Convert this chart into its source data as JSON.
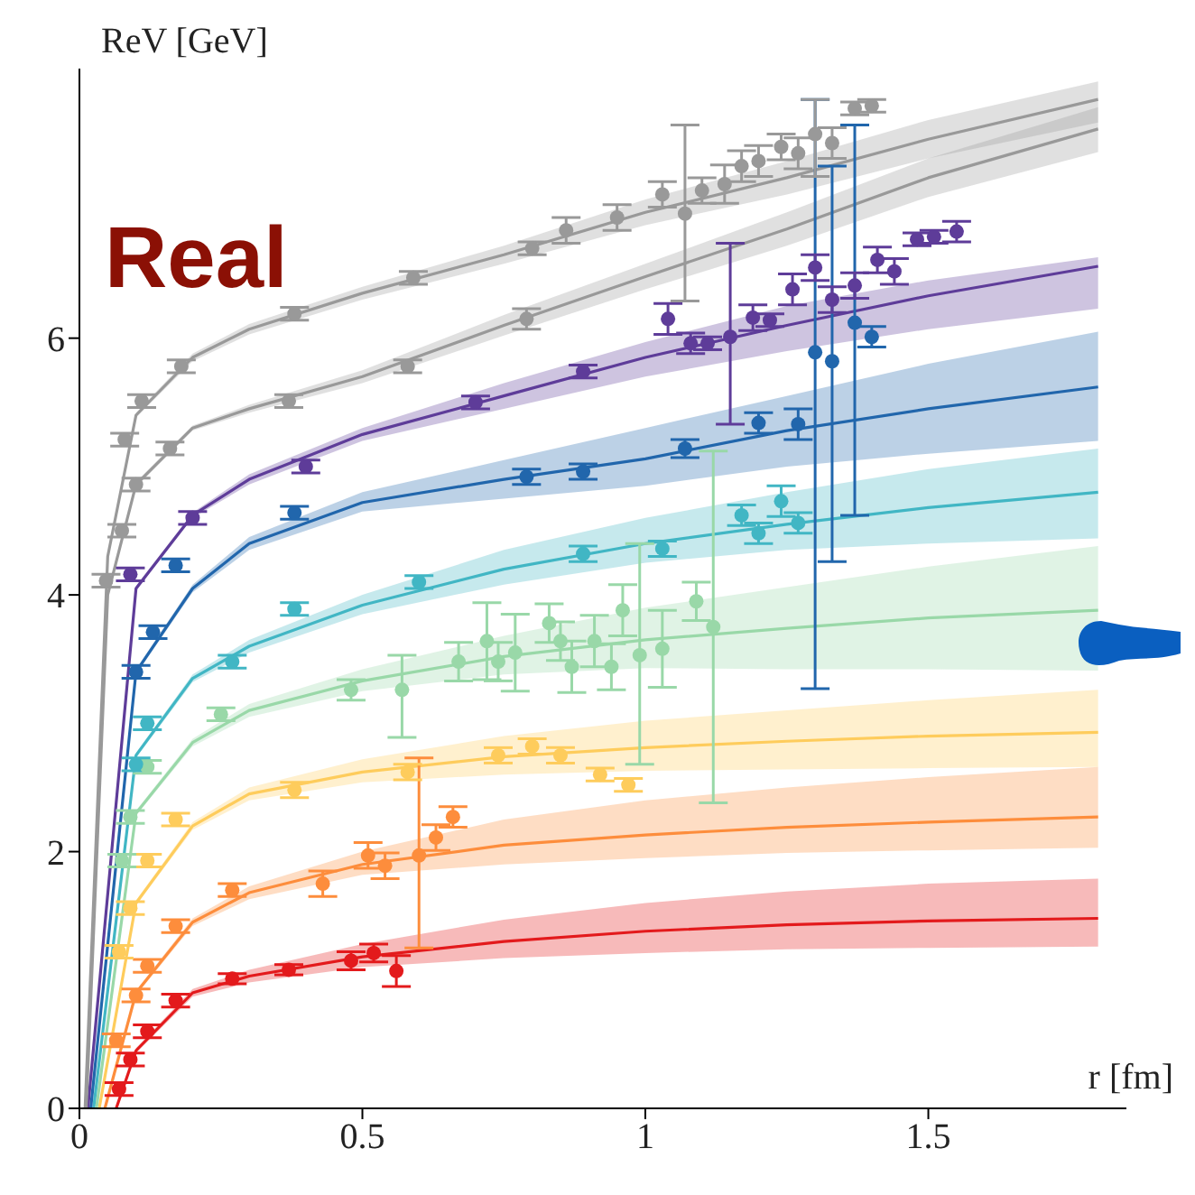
{
  "chart_data": {
    "type": "line",
    "xlabel": "r [fm]",
    "ylabel": "ReV [GeV]",
    "annotations": [
      "Real"
    ],
    "xlim": [
      0,
      1.85
    ],
    "ylim": [
      0,
      8.1
    ],
    "xticks": [
      0,
      0.5,
      1,
      1.5
    ],
    "yticks": [
      0,
      2,
      4,
      6
    ],
    "series": [
      {
        "color": "#e31a1c",
        "x": [
          0.065,
          0.1,
          0.2,
          0.3,
          0.5,
          0.75,
          1,
          1.25,
          1.5,
          1.8
        ],
        "values": [
          0,
          0.45,
          0.9,
          1.03,
          1.18,
          1.3,
          1.38,
          1.43,
          1.46,
          1.48
        ],
        "lower": [
          0,
          0.43,
          0.87,
          0.98,
          1.1,
          1.17,
          1.21,
          1.24,
          1.25,
          1.26
        ],
        "upper": [
          0,
          0.47,
          0.93,
          1.08,
          1.28,
          1.47,
          1.6,
          1.69,
          1.75,
          1.79
        ]
      },
      {
        "color": "#fd8d3c",
        "x": [
          0.045,
          0.1,
          0.2,
          0.3,
          0.5,
          0.75,
          1,
          1.25,
          1.5,
          1.8
        ],
        "values": [
          0,
          0.9,
          1.45,
          1.68,
          1.9,
          2.05,
          2.13,
          2.19,
          2.23,
          2.27
        ],
        "lower": [
          0,
          0.88,
          1.42,
          1.63,
          1.82,
          1.9,
          1.95,
          1.99,
          2.01,
          2.03
        ],
        "upper": [
          0,
          0.92,
          1.48,
          1.73,
          2,
          2.25,
          2.4,
          2.5,
          2.58,
          2.66
        ]
      },
      {
        "color": "#fecc5c",
        "x": [
          0.035,
          0.1,
          0.2,
          0.3,
          0.5,
          0.75,
          1,
          1.25,
          1.5,
          1.8
        ],
        "values": [
          0,
          1.6,
          2.2,
          2.45,
          2.62,
          2.74,
          2.81,
          2.86,
          2.9,
          2.93
        ],
        "lower": [
          0,
          1.58,
          2.17,
          2.4,
          2.54,
          2.6,
          2.63,
          2.64,
          2.65,
          2.66
        ],
        "upper": [
          0,
          1.62,
          2.23,
          2.5,
          2.72,
          2.9,
          3.02,
          3.1,
          3.18,
          3.26
        ]
      },
      {
        "color": "#99d8a8",
        "x": [
          0.03,
          0.1,
          0.2,
          0.3,
          0.5,
          0.75,
          1,
          1.25,
          1.5,
          1.8
        ],
        "values": [
          0,
          2.3,
          2.85,
          3.1,
          3.33,
          3.52,
          3.65,
          3.74,
          3.82,
          3.88
        ],
        "lower": [
          0,
          2.28,
          2.82,
          3.05,
          3.25,
          3.38,
          3.43,
          3.42,
          3.42,
          3.41
        ],
        "upper": [
          0,
          2.32,
          2.88,
          3.15,
          3.42,
          3.68,
          3.9,
          4.06,
          4.22,
          4.38
        ]
      },
      {
        "color": "#41b6c4",
        "x": [
          0.025,
          0.1,
          0.2,
          0.3,
          0.5,
          0.75,
          1,
          1.25,
          1.5,
          1.8
        ],
        "values": [
          0,
          2.75,
          3.35,
          3.6,
          3.92,
          4.2,
          4.4,
          4.55,
          4.68,
          4.8
        ],
        "lower": [
          0,
          2.73,
          3.32,
          3.55,
          3.85,
          4.08,
          4.25,
          4.35,
          4.4,
          4.44
        ],
        "upper": [
          0,
          2.77,
          3.38,
          3.65,
          4,
          4.35,
          4.6,
          4.8,
          4.98,
          5.14
        ]
      },
      {
        "color": "#2166ac",
        "x": [
          0.02,
          0.1,
          0.2,
          0.3,
          0.5,
          0.75,
          1,
          1.25,
          1.5,
          1.8
        ],
        "values": [
          0,
          3.4,
          4.05,
          4.4,
          4.72,
          4.9,
          5.06,
          5.28,
          5.45,
          5.62
        ],
        "lower": [
          0,
          3.38,
          4.02,
          4.35,
          4.65,
          4.75,
          4.85,
          5,
          5.1,
          5.2
        ],
        "upper": [
          0,
          3.42,
          4.08,
          4.45,
          4.8,
          5.05,
          5.3,
          5.55,
          5.8,
          6.05
        ]
      },
      {
        "color": "#5e3c99",
        "x": [
          0.015,
          0.1,
          0.2,
          0.3,
          0.5,
          0.75,
          1,
          1.25,
          1.5,
          1.8
        ],
        "values": [
          0,
          4.05,
          4.62,
          4.9,
          5.25,
          5.55,
          5.85,
          6.1,
          6.33,
          6.56
        ],
        "lower": [
          0,
          4.03,
          4.6,
          4.86,
          5.2,
          5.45,
          5.7,
          5.9,
          6.07,
          6.23
        ],
        "upper": [
          0,
          4.07,
          4.64,
          4.94,
          5.3,
          5.65,
          5.97,
          6.25,
          6.45,
          6.63
        ]
      },
      {
        "color": "#999999",
        "x": [
          0.012,
          0.05,
          0.1,
          0.2,
          0.3,
          0.5,
          0.75,
          1,
          1.25,
          1.5,
          1.8
        ],
        "values": [
          0,
          4,
          4.86,
          5.3,
          5.45,
          5.7,
          6.1,
          6.48,
          6.85,
          7.25,
          7.63
        ],
        "lower": [
          0,
          4,
          4.84,
          5.28,
          5.42,
          5.65,
          6.02,
          6.38,
          6.72,
          7.1,
          7.45
        ],
        "upper": [
          0,
          4,
          4.88,
          5.32,
          5.48,
          5.75,
          6.18,
          6.58,
          6.98,
          7.4,
          7.8
        ]
      },
      {
        "color": "#999999",
        "x": [
          0.01,
          0.05,
          0.1,
          0.2,
          0.3,
          0.5,
          0.75,
          1,
          1.25,
          1.5,
          1.8
        ],
        "values": [
          0,
          4.3,
          5.4,
          5.85,
          6.07,
          6.35,
          6.65,
          6.98,
          7.25,
          7.55,
          7.86
        ],
        "lower": [
          0,
          4.3,
          5.38,
          5.82,
          6.03,
          6.3,
          6.58,
          6.88,
          7.12,
          7.4,
          7.68
        ],
        "upper": [
          0,
          4.3,
          5.42,
          5.88,
          6.11,
          6.4,
          6.72,
          7.08,
          7.38,
          7.7,
          8
        ]
      },
      {
        "type": "scatter",
        "color": "#e31a1c",
        "x": [
          0.07,
          0.09,
          0.12,
          0.17,
          0.27,
          0.37,
          0.48,
          0.52,
          0.56
        ],
        "values": [
          0.15,
          0.38,
          0.6,
          0.84,
          1.01,
          1.08,
          1.15,
          1.21,
          1.07
        ],
        "errors": [
          0.05,
          0.05,
          0.05,
          0.05,
          0.04,
          0.04,
          0.07,
          0.07,
          0.12
        ]
      },
      {
        "type": "scatter",
        "color": "#fd8d3c",
        "x": [
          0.065,
          0.1,
          0.12,
          0.17,
          0.27,
          0.43,
          0.51,
          0.54,
          0.6,
          0.63,
          0.66
        ],
        "values": [
          0.53,
          0.88,
          1.11,
          1.42,
          1.7,
          1.75,
          1.97,
          1.89,
          1.97,
          2.11,
          2.27
        ],
        "errors": [
          0.05,
          0.05,
          0.05,
          0.05,
          0.05,
          0.1,
          0.1,
          0.1,
          [
            1.25,
            2.73
          ],
          0.1,
          0.08
        ]
      },
      {
        "type": "scatter",
        "color": "#fecc5c",
        "x": [
          0.07,
          0.09,
          0.12,
          0.17,
          0.38,
          0.58,
          0.74,
          0.8,
          0.85,
          0.92,
          0.97
        ],
        "values": [
          1.22,
          1.56,
          1.93,
          2.25,
          2.48,
          2.62,
          2.75,
          2.82,
          2.75,
          2.6,
          2.52
        ],
        "errors": [
          0.05,
          0.05,
          0.05,
          0.05,
          0.06,
          0.06,
          0.06,
          0.06,
          0.06,
          0.05,
          0.05
        ]
      },
      {
        "type": "scatter",
        "color": "#99d8a8",
        "x": [
          0.075,
          0.09,
          0.12,
          0.25,
          0.48,
          0.57,
          0.67,
          0.72,
          0.74,
          0.77,
          0.83,
          0.85,
          0.87,
          0.91,
          0.94,
          0.96,
          0.99,
          1.03,
          1.09,
          1.12
        ],
        "values": [
          1.93,
          2.27,
          2.66,
          3.07,
          3.26,
          3.26,
          3.48,
          3.64,
          3.48,
          3.55,
          3.78,
          3.64,
          3.44,
          3.64,
          3.44,
          3.88,
          3.53,
          3.58,
          3.95,
          3.75
        ],
        "errors": [
          0.05,
          0.05,
          0.05,
          0.05,
          0.08,
          [
            2.89,
            3.53
          ],
          0.15,
          0.3,
          0.15,
          0.3,
          0.15,
          0.15,
          0.2,
          0.2,
          0.18,
          0.2,
          [
            2.68,
            4.4
          ],
          0.3,
          0.15,
          [
            2.38,
            5.12
          ]
        ]
      },
      {
        "type": "scatter",
        "color": "#41b6c4",
        "x": [
          0.1,
          0.12,
          0.27,
          0.38,
          0.6,
          0.89,
          1.03,
          1.17,
          1.2,
          1.24,
          1.27
        ],
        "values": [
          2.68,
          3,
          3.48,
          3.89,
          4.1,
          4.32,
          4.36,
          4.62,
          4.48,
          4.73,
          4.56
        ],
        "errors": [
          0.05,
          0.05,
          0.05,
          0.05,
          0.05,
          0.06,
          0.06,
          0.08,
          0.08,
          0.12,
          0.08
        ]
      },
      {
        "type": "scatter",
        "color": "#2166ac",
        "x": [
          0.1,
          0.13,
          0.17,
          0.38,
          0.79,
          0.89,
          1.07,
          1.2,
          1.27,
          1.3,
          1.33,
          1.37,
          1.4
        ],
        "values": [
          3.4,
          3.71,
          4.23,
          4.64,
          4.92,
          4.96,
          5.14,
          5.34,
          5.33,
          5.89,
          5.82,
          6.12,
          6.01
        ],
        "errors": [
          0.05,
          0.05,
          0.05,
          0.05,
          0.06,
          0.06,
          0.07,
          0.08,
          0.12,
          [
            3.27,
            7.86
          ],
          [
            4.26,
            7.34
          ],
          [
            4.62,
            7.66
          ],
          0.08
        ]
      },
      {
        "type": "scatter",
        "color": "#5e3c99",
        "x": [
          0.09,
          0.2,
          0.4,
          0.7,
          0.89,
          1.04,
          1.08,
          1.11,
          1.15,
          1.19,
          1.22,
          1.26,
          1.3,
          1.33,
          1.37,
          1.41,
          1.44,
          1.48,
          1.51,
          1.55
        ],
        "values": [
          4.16,
          4.6,
          5,
          5.5,
          5.74,
          6.15,
          5.96,
          5.96,
          6.01,
          6.16,
          6.14,
          6.38,
          6.55,
          6.3,
          6.41,
          6.61,
          6.52,
          6.77,
          6.79,
          6.83
        ],
        "errors": [
          0.05,
          0.05,
          0.05,
          0.05,
          0.05,
          0.12,
          0.08,
          0.05,
          [
            5.33,
            6.74
          ],
          0.1,
          0.05,
          0.12,
          0.1,
          0.1,
          0.1,
          0.1,
          0.1,
          0.05,
          0.05,
          0.08
        ]
      },
      {
        "type": "scatter",
        "color": "#999999",
        "x": [
          0.075,
          0.1,
          0.16,
          0.37,
          0.58,
          0.79
        ],
        "values": [
          4.5,
          4.86,
          5.14,
          5.51,
          5.78,
          6.15
        ],
        "errors": [
          0.05,
          0.05,
          0.05,
          0.05,
          0.05,
          0.08
        ]
      },
      {
        "type": "scatter",
        "color": "#999999",
        "x": [
          0.047,
          0.08,
          0.11,
          0.18,
          0.38,
          0.59,
          0.8,
          0.86,
          0.95,
          1.03,
          1.07,
          1.1,
          1.14,
          1.17,
          1.2,
          1.24,
          1.27,
          1.3,
          1.33,
          1.37,
          1.4
        ],
        "values": [
          4.11,
          5.21,
          5.51,
          5.78,
          6.19,
          6.47,
          6.7,
          6.84,
          6.94,
          7.12,
          6.97,
          7.15,
          7.2,
          7.34,
          7.38,
          7.49,
          7.44,
          7.59,
          7.52,
          7.79,
          7.81
        ],
        "errors": [
          0.05,
          0.05,
          0.05,
          0.05,
          0.05,
          0.05,
          0.05,
          0.1,
          0.1,
          0.1,
          [
            6.29,
            7.66
          ],
          0.1,
          0.15,
          0.12,
          0.12,
          0.1,
          0.12,
          [
            7.26,
            7.86
          ],
          0.12,
          0.05,
          0.05
        ]
      }
    ]
  }
}
